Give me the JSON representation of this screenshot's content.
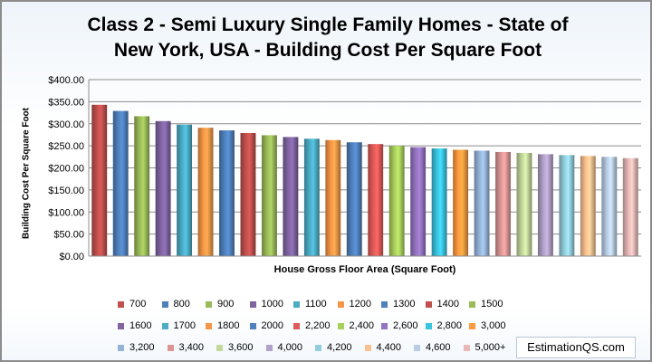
{
  "chart_data": {
    "type": "bar",
    "title": "Class 2 - Semi Luxury Single Family Homes  - State of\nNew York, USA  - Building Cost Per Square Foot",
    "xlabel": "House Gross Floor Area (Square Foot)",
    "ylabel": "Building Cost Per Square Foot",
    "ylim": [
      0,
      400
    ],
    "yticks": [
      "$0.00",
      "$50.00",
      "$100.00",
      "$150.00",
      "$200.00",
      "$250.00",
      "$300.00",
      "$350.00",
      "$400.00"
    ],
    "grid": true,
    "legend_position": "bottom",
    "categories": [
      "700",
      "800",
      "900",
      "1000",
      "1100",
      "1200",
      "1300",
      "1400",
      "1500",
      "1600",
      "1700",
      "1800",
      "2000",
      "2,200",
      "2,400",
      "2,600",
      "2,800",
      "3,000",
      "3,200",
      "3,400",
      "3,600",
      "4,000",
      "4,200",
      "4,400",
      "4,600",
      "5,000+"
    ],
    "values": [
      343,
      329,
      317,
      306,
      298,
      291,
      285,
      279,
      274,
      270,
      266,
      263,
      258,
      254,
      250,
      247,
      244,
      241,
      239,
      236,
      234,
      231,
      229,
      227,
      225,
      222
    ],
    "colors": [
      "#c0504d",
      "#4f81bd",
      "#9bbb59",
      "#8064a2",
      "#4bacc6",
      "#f79646",
      "#4f81bd",
      "#c0504d",
      "#9bbb59",
      "#8064a2",
      "#4bacc6",
      "#f79646",
      "#4f81bd",
      "#e05a57",
      "#a9cf5c",
      "#9473c0",
      "#39c4e0",
      "#ff9b3f",
      "#95b3d7",
      "#da9694",
      "#c4d79b",
      "#b1a0c7",
      "#92cddc",
      "#fabf8f",
      "#b8cce4",
      "#e6b8b7"
    ]
  },
  "watermark": "EstimationQS.com"
}
